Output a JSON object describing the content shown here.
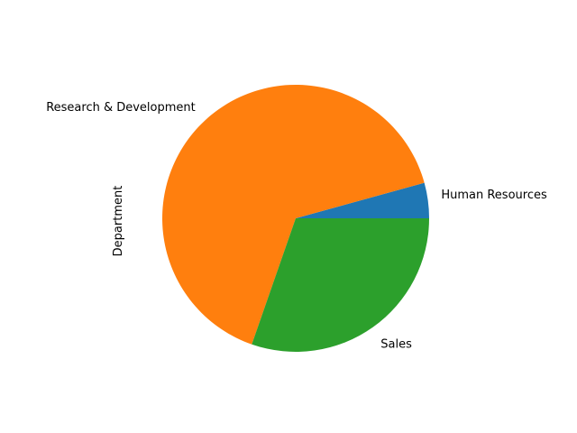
{
  "chart_data": {
    "type": "pie",
    "title": "",
    "ylabel": "Department",
    "start_angle_deg": 0,
    "direction": "counterclockwise",
    "categories": [
      "Human Resources",
      "Research & Development",
      "Sales"
    ],
    "values": [
      63,
      961,
      446
    ],
    "colors": [
      "#1f77b4",
      "#ff7f0e",
      "#2ca02c"
    ]
  }
}
